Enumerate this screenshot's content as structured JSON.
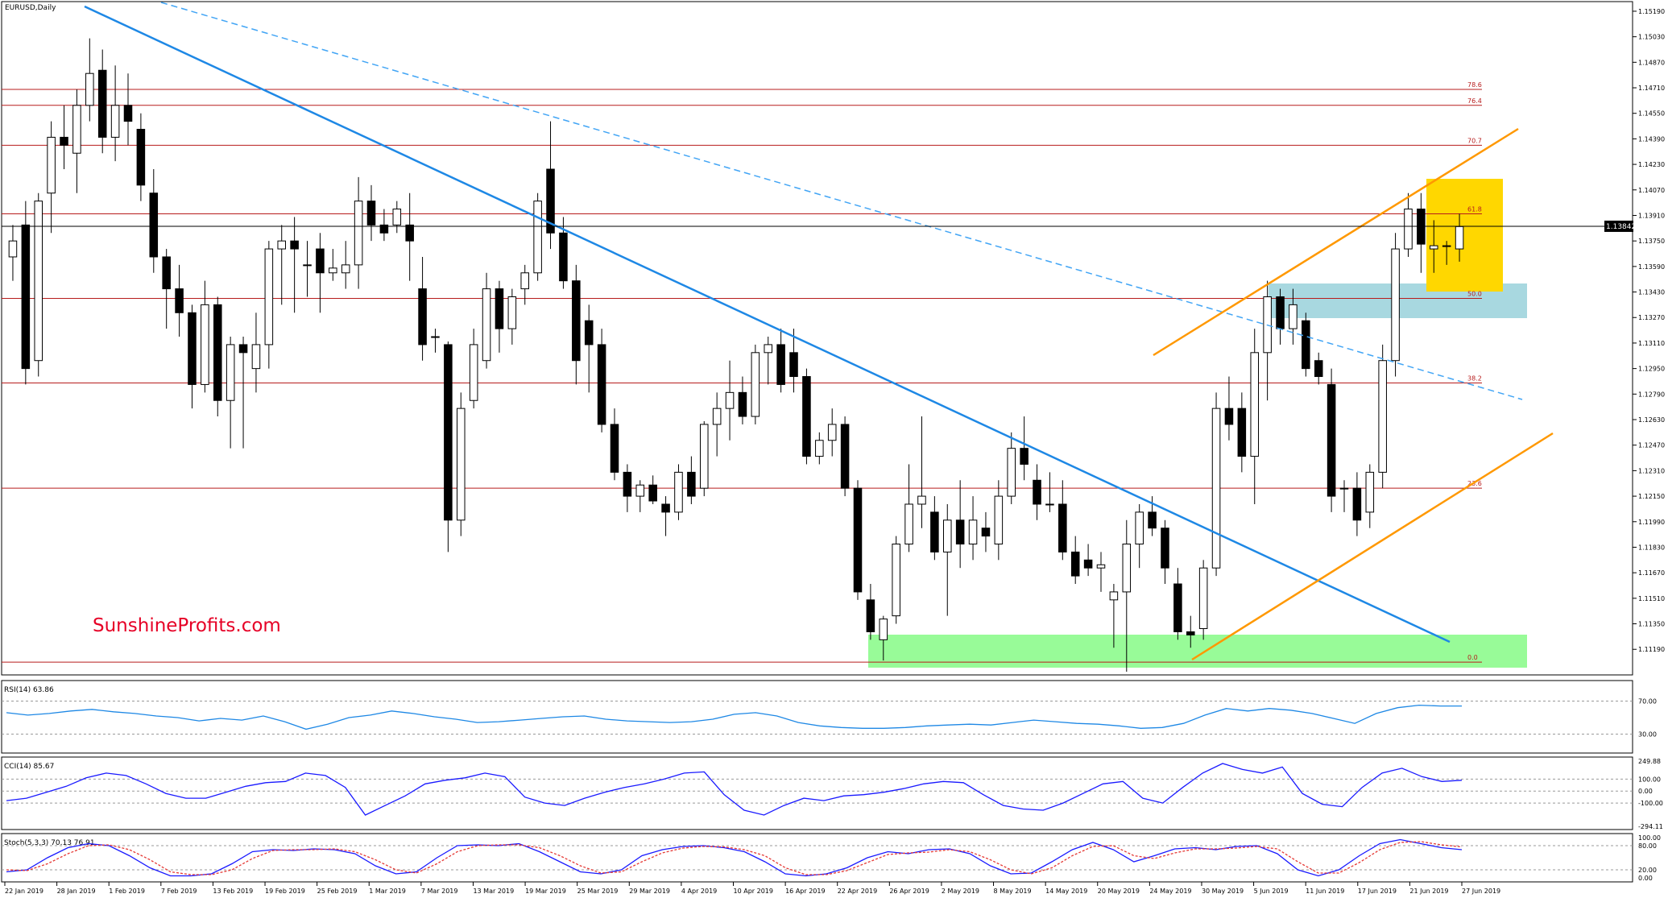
{
  "chart": {
    "symbol_label": "EURUSD,Daily",
    "watermark": "SunshineProfits.com",
    "current_price_label": "1.13842",
    "colors": {
      "bull_candle": "#ffffff",
      "bear_candle": "#000000",
      "trendline": "#1e88e5",
      "dashed_trendline": "#42a5f5",
      "channel": "#ff9800",
      "fib_line": "#b71c1c",
      "green_zone": "#98fb98",
      "blue_zone": "#a8d8e0",
      "yellow_zone": "#ffd700",
      "rsi": "#1e88e5",
      "cci": "#1a1aff",
      "stoch_main": "#1a1aff",
      "stoch_signal": "#e53935",
      "watermark": "#e60026"
    }
  },
  "chart_data": [
    {
      "type": "candlestick",
      "title": "EURUSD,Daily",
      "x_labels": [
        "22 Jan 2019",
        "28 Jan 2019",
        "1 Feb 2019",
        "7 Feb 2019",
        "13 Feb 2019",
        "19 Feb 2019",
        "25 Feb 2019",
        "1 Mar 2019",
        "7 Mar 2019",
        "13 Mar 2019",
        "19 Mar 2019",
        "25 Mar 2019",
        "29 Mar 2019",
        "4 Apr 2019",
        "10 Apr 2019",
        "16 Apr 2019",
        "22 Apr 2019",
        "26 Apr 2019",
        "2 May 2019",
        "8 May 2019",
        "14 May 2019",
        "20 May 2019",
        "24 May 2019",
        "30 May 2019",
        "5 Jun 2019",
        "11 Jun 2019",
        "17 Jun 2019",
        "21 Jun 2019",
        "27 Jun 2019"
      ],
      "y_ticks": [
        "1.15190",
        "1.15030",
        "1.14870",
        "1.14710",
        "1.14550",
        "1.14390",
        "1.14230",
        "1.14070",
        "1.13910",
        "1.13750",
        "1.13590",
        "1.13430",
        "1.13270",
        "1.13110",
        "1.12950",
        "1.12790",
        "1.12630",
        "1.12470",
        "1.12310",
        "1.12150",
        "1.11990",
        "1.11830",
        "1.11670",
        "1.11510",
        "1.11350",
        "1.11190"
      ],
      "ylim": [
        1.1107,
        1.1522
      ],
      "ohlc": [
        [
          1.1365,
          1.1385,
          1.135,
          1.1375
        ],
        [
          1.1385,
          1.14,
          1.1285,
          1.1295
        ],
        [
          1.13,
          1.1405,
          1.129,
          1.14
        ],
        [
          1.1405,
          1.145,
          1.138,
          1.144
        ],
        [
          1.144,
          1.146,
          1.142,
          1.1435
        ],
        [
          1.143,
          1.147,
          1.1405,
          1.146
        ],
        [
          1.146,
          1.1502,
          1.145,
          1.148
        ],
        [
          1.1482,
          1.1495,
          1.143,
          1.144
        ],
        [
          1.144,
          1.1485,
          1.1425,
          1.146
        ],
        [
          1.146,
          1.148,
          1.1435,
          1.145
        ],
        [
          1.1445,
          1.1455,
          1.14,
          1.141
        ],
        [
          1.1405,
          1.142,
          1.1355,
          1.1365
        ],
        [
          1.1365,
          1.137,
          1.132,
          1.1345
        ],
        [
          1.1345,
          1.136,
          1.1315,
          1.133
        ],
        [
          1.133,
          1.1335,
          1.127,
          1.1285
        ],
        [
          1.1285,
          1.135,
          1.128,
          1.1335
        ],
        [
          1.1335,
          1.134,
          1.1265,
          1.1275
        ],
        [
          1.1275,
          1.1315,
          1.1245,
          1.131
        ],
        [
          1.131,
          1.1315,
          1.1245,
          1.1305
        ],
        [
          1.1295,
          1.133,
          1.128,
          1.131
        ],
        [
          1.131,
          1.1375,
          1.1295,
          1.137
        ],
        [
          1.137,
          1.1385,
          1.1335,
          1.1375
        ],
        [
          1.1375,
          1.139,
          1.133,
          1.137
        ],
        [
          1.136,
          1.1375,
          1.134,
          1.136
        ],
        [
          1.137,
          1.138,
          1.133,
          1.1355
        ],
        [
          1.1355,
          1.137,
          1.135,
          1.1358
        ],
        [
          1.1355,
          1.1375,
          1.1345,
          1.136
        ],
        [
          1.136,
          1.1415,
          1.1345,
          1.14
        ],
        [
          1.14,
          1.141,
          1.1375,
          1.1385
        ],
        [
          1.1385,
          1.1395,
          1.1375,
          1.138
        ],
        [
          1.1385,
          1.14,
          1.138,
          1.1395
        ],
        [
          1.1385,
          1.1405,
          1.135,
          1.1375
        ],
        [
          1.1345,
          1.1365,
          1.13,
          1.131
        ],
        [
          1.1315,
          1.132,
          1.1305,
          1.1315
        ],
        [
          1.131,
          1.1312,
          1.118,
          1.12
        ],
        [
          1.12,
          1.128,
          1.119,
          1.127
        ],
        [
          1.1275,
          1.132,
          1.127,
          1.131
        ],
        [
          1.13,
          1.1355,
          1.1295,
          1.1345
        ],
        [
          1.1345,
          1.135,
          1.1305,
          1.132
        ],
        [
          1.132,
          1.1345,
          1.131,
          1.134
        ],
        [
          1.1345,
          1.136,
          1.1335,
          1.1355
        ],
        [
          1.1355,
          1.1405,
          1.135,
          1.14
        ],
        [
          1.142,
          1.145,
          1.137,
          1.138
        ],
        [
          1.138,
          1.139,
          1.1345,
          1.135
        ],
        [
          1.135,
          1.136,
          1.1285,
          1.13
        ],
        [
          1.1325,
          1.1335,
          1.128,
          1.131
        ],
        [
          1.131,
          1.132,
          1.1255,
          1.126
        ],
        [
          1.126,
          1.127,
          1.1225,
          1.123
        ],
        [
          1.123,
          1.1235,
          1.1205,
          1.1215
        ],
        [
          1.1215,
          1.1225,
          1.1205,
          1.1222
        ],
        [
          1.1222,
          1.1228,
          1.121,
          1.1212
        ],
        [
          1.121,
          1.1215,
          1.119,
          1.1205
        ],
        [
          1.1205,
          1.1235,
          1.12,
          1.123
        ],
        [
          1.123,
          1.124,
          1.121,
          1.1215
        ],
        [
          1.122,
          1.1262,
          1.1215,
          1.126
        ],
        [
          1.126,
          1.128,
          1.124,
          1.127
        ],
        [
          1.127,
          1.13,
          1.125,
          1.128
        ],
        [
          1.128,
          1.129,
          1.126,
          1.1265
        ],
        [
          1.1265,
          1.131,
          1.126,
          1.1305
        ],
        [
          1.1305,
          1.1315,
          1.1285,
          1.131
        ],
        [
          1.131,
          1.132,
          1.128,
          1.1285
        ],
        [
          1.1305,
          1.132,
          1.128,
          1.129
        ],
        [
          1.129,
          1.1295,
          1.1235,
          1.124
        ],
        [
          1.124,
          1.1255,
          1.1235,
          1.125
        ],
        [
          1.125,
          1.127,
          1.124,
          1.126
        ],
        [
          1.126,
          1.1265,
          1.1215,
          1.122
        ],
        [
          1.122,
          1.1225,
          1.115,
          1.1155
        ],
        [
          1.115,
          1.116,
          1.1125,
          1.113
        ],
        [
          1.1125,
          1.114,
          1.1112,
          1.1138
        ],
        [
          1.114,
          1.119,
          1.1135,
          1.1185
        ],
        [
          1.1185,
          1.1235,
          1.118,
          1.121
        ],
        [
          1.121,
          1.1265,
          1.1195,
          1.1215
        ],
        [
          1.1205,
          1.1215,
          1.1175,
          1.118
        ],
        [
          1.118,
          1.121,
          1.114,
          1.12
        ],
        [
          1.12,
          1.1225,
          1.117,
          1.1185
        ],
        [
          1.1185,
          1.1215,
          1.1175,
          1.12
        ],
        [
          1.1195,
          1.1205,
          1.118,
          1.119
        ],
        [
          1.1185,
          1.1225,
          1.1175,
          1.1215
        ],
        [
          1.1215,
          1.1255,
          1.121,
          1.1245
        ],
        [
          1.1245,
          1.1265,
          1.1225,
          1.1235
        ],
        [
          1.1225,
          1.1235,
          1.12,
          1.121
        ],
        [
          1.121,
          1.123,
          1.1205,
          1.121
        ],
        [
          1.121,
          1.1225,
          1.1175,
          1.118
        ],
        [
          1.118,
          1.119,
          1.116,
          1.1165
        ],
        [
          1.1175,
          1.1185,
          1.1165,
          1.117
        ],
        [
          1.117,
          1.118,
          1.1155,
          1.1172
        ],
        [
          1.115,
          1.116,
          1.112,
          1.1155
        ],
        [
          1.1155,
          1.12,
          1.1105,
          1.1185
        ],
        [
          1.1185,
          1.121,
          1.117,
          1.1205
        ],
        [
          1.1205,
          1.1215,
          1.119,
          1.1195
        ],
        [
          1.1195,
          1.12,
          1.116,
          1.117
        ],
        [
          1.116,
          1.117,
          1.1125,
          1.113
        ],
        [
          1.113,
          1.114,
          1.112,
          1.1128
        ],
        [
          1.1132,
          1.1175,
          1.1125,
          1.117
        ],
        [
          1.117,
          1.128,
          1.1165,
          1.127
        ],
        [
          1.127,
          1.129,
          1.125,
          1.126
        ],
        [
          1.127,
          1.128,
          1.123,
          1.124
        ],
        [
          1.124,
          1.132,
          1.121,
          1.1305
        ],
        [
          1.1305,
          1.135,
          1.1275,
          1.134
        ],
        [
          1.134,
          1.1345,
          1.131,
          1.132
        ],
        [
          1.132,
          1.1345,
          1.131,
          1.1335
        ],
        [
          1.1325,
          1.133,
          1.129,
          1.1295
        ],
        [
          1.13,
          1.1305,
          1.1285,
          1.129
        ],
        [
          1.1285,
          1.1295,
          1.1205,
          1.1215
        ],
        [
          1.122,
          1.1225,
          1.1205,
          1.122
        ],
        [
          1.122,
          1.123,
          1.119,
          1.12
        ],
        [
          1.1205,
          1.1235,
          1.1195,
          1.123
        ],
        [
          1.123,
          1.131,
          1.122,
          1.13
        ],
        [
          1.13,
          1.138,
          1.129,
          1.137
        ],
        [
          1.137,
          1.1405,
          1.1365,
          1.1395
        ],
        [
          1.1395,
          1.1405,
          1.1355,
          1.1373
        ],
        [
          1.137,
          1.1388,
          1.1355,
          1.1372
        ],
        [
          1.1372,
          1.1375,
          1.136,
          1.1372
        ],
        [
          1.137,
          1.1392,
          1.1362,
          1.1384
        ]
      ],
      "fib_levels": [
        {
          "label": "78.6",
          "value": 1.147
        },
        {
          "label": "76.4",
          "value": 1.146
        },
        {
          "label": "70.7",
          "value": 1.1435
        },
        {
          "label": "61.8",
          "value": 1.1392
        },
        {
          "label": "50.0",
          "value": 1.1339
        },
        {
          "label": "38.2",
          "value": 1.1286
        },
        {
          "label": "23.6",
          "value": 1.122
        },
        {
          "label": "0.0",
          "value": 1.1111
        }
      ],
      "current_price": 1.13842
    },
    {
      "type": "line",
      "title": "RSI(14) 63.86",
      "y_ticks": [
        "70.00",
        "30.00"
      ],
      "ylim": [
        10,
        90
      ],
      "levels": [
        70,
        30
      ],
      "series": [
        {
          "values": [
            56,
            53,
            55,
            58,
            60,
            57,
            55,
            52,
            50,
            46,
            49,
            47,
            52,
            45,
            36,
            42,
            50,
            53,
            58,
            55,
            51,
            48,
            44,
            45,
            47,
            49,
            51,
            52,
            48,
            46,
            45,
            44,
            45,
            48,
            54,
            56,
            52,
            44,
            40,
            38,
            37,
            37,
            38,
            40,
            41,
            42,
            41,
            44,
            47,
            45,
            43,
            42,
            40,
            37,
            38,
            43,
            53,
            61,
            58,
            61,
            59,
            55,
            49,
            43,
            55,
            62,
            65,
            64,
            64
          ]
        }
      ]
    },
    {
      "type": "line",
      "title": "CCI(14) 85.67",
      "y_ticks": [
        "249.88",
        "100.00",
        "0.00",
        "-100.00",
        "-294.11"
      ],
      "ylim": [
        -294.11,
        249.88
      ],
      "levels": [
        100,
        0,
        -100
      ],
      "series": [
        {
          "values": [
            -80,
            -60,
            -10,
            40,
            110,
            150,
            130,
            60,
            -20,
            -60,
            -60,
            -10,
            40,
            70,
            80,
            150,
            130,
            30,
            -200,
            -120,
            -40,
            60,
            90,
            110,
            150,
            120,
            -50,
            -100,
            -120,
            -60,
            -10,
            30,
            60,
            100,
            150,
            160,
            -30,
            -160,
            -200,
            -120,
            -60,
            -80,
            -40,
            -30,
            -10,
            20,
            60,
            80,
            70,
            -30,
            -120,
            -150,
            -160,
            -100,
            -20,
            60,
            80,
            -60,
            -100,
            30,
            150,
            230,
            180,
            150,
            200,
            -20,
            -110,
            -130,
            30,
            150,
            190,
            120,
            80,
            90
          ]
        }
      ]
    },
    {
      "type": "line",
      "title": "Stoch(5,3,3) 70.13 76.91",
      "y_ticks": [
        "100.00",
        "80.00",
        "20.00",
        "0.00"
      ],
      "ylim": [
        0,
        100
      ],
      "levels": [
        80,
        20
      ],
      "series": [
        {
          "name": "%K",
          "values": [
            15,
            20,
            50,
            75,
            85,
            80,
            55,
            25,
            5,
            5,
            10,
            35,
            65,
            70,
            68,
            72,
            70,
            60,
            30,
            10,
            15,
            50,
            80,
            82,
            80,
            85,
            65,
            40,
            15,
            10,
            20,
            55,
            70,
            78,
            80,
            75,
            65,
            40,
            10,
            5,
            10,
            25,
            50,
            65,
            60,
            70,
            72,
            60,
            30,
            10,
            12,
            40,
            70,
            88,
            70,
            40,
            55,
            72,
            75,
            70,
            78,
            80,
            60,
            20,
            5,
            20,
            55,
            85,
            95,
            85,
            75,
            70
          ]
        },
        {
          "name": "%D",
          "values": [
            20,
            18,
            35,
            60,
            80,
            82,
            70,
            45,
            15,
            8,
            8,
            20,
            48,
            68,
            70,
            70,
            72,
            65,
            45,
            20,
            12,
            35,
            65,
            80,
            82,
            82,
            75,
            55,
            30,
            12,
            15,
            40,
            62,
            74,
            78,
            77,
            70,
            55,
            25,
            8,
            8,
            18,
            38,
            58,
            62,
            64,
            70,
            65,
            45,
            20,
            10,
            25,
            55,
            78,
            80,
            55,
            48,
            62,
            72,
            72,
            74,
            78,
            72,
            40,
            12,
            12,
            38,
            70,
            88,
            90,
            82,
            77
          ]
        }
      ]
    }
  ]
}
